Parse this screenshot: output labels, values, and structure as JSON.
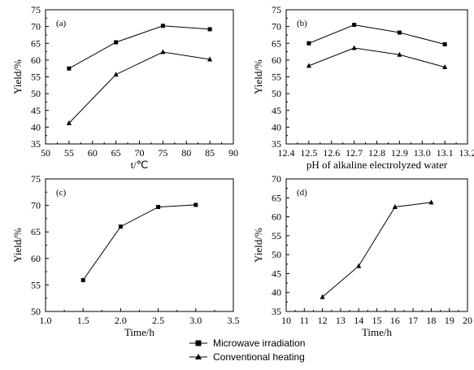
{
  "chart_data": [
    {
      "type": "line",
      "panel_label": "(a)",
      "xlabel": "t/℃",
      "ylabel": "Yield/%",
      "xlim": [
        50,
        90
      ],
      "ylim": [
        35,
        75
      ],
      "xticks": [
        50,
        55,
        60,
        65,
        70,
        75,
        80,
        85,
        90
      ],
      "xtick_labels": [
        "50",
        "55",
        "60",
        "65",
        "70",
        "75",
        "80",
        "85",
        "90"
      ],
      "yticks": [
        35,
        40,
        45,
        50,
        55,
        60,
        65,
        70,
        75
      ],
      "ytick_labels": [
        "35",
        "40",
        "45",
        "50",
        "55",
        "60",
        "65",
        "70",
        "75"
      ],
      "series": [
        {
          "name": "Microwave irradiation",
          "marker": "square",
          "x": [
            55,
            65,
            75,
            85
          ],
          "values": [
            57.5,
            65.3,
            70.2,
            69.2
          ]
        },
        {
          "name": "Conventional heating",
          "marker": "triangle",
          "x": [
            55,
            65,
            75,
            85
          ],
          "values": [
            41.2,
            55.7,
            62.4,
            60.2
          ]
        }
      ]
    },
    {
      "type": "line",
      "panel_label": "(b)",
      "xlabel": "pH of alkaline electrolyzed water",
      "ylabel": "Yield/%",
      "xlim": [
        12.4,
        13.2
      ],
      "ylim": [
        35,
        75
      ],
      "xticks": [
        12.4,
        12.5,
        12.6,
        12.7,
        12.8,
        12.9,
        13.0,
        13.1,
        13.2
      ],
      "xtick_labels": [
        "12.4",
        "12.5",
        "12.6",
        "12.7",
        "12.8",
        "12.9",
        "13.0",
        "13.1",
        "13.2"
      ],
      "yticks": [
        35,
        40,
        45,
        50,
        55,
        60,
        65,
        70,
        75
      ],
      "ytick_labels": [
        "35",
        "40",
        "45",
        "50",
        "55",
        "60",
        "65",
        "70",
        "75"
      ],
      "series": [
        {
          "name": "Microwave irradiation",
          "marker": "square",
          "x": [
            12.5,
            12.7,
            12.9,
            13.1
          ],
          "values": [
            65.0,
            70.5,
            68.2,
            64.7
          ]
        },
        {
          "name": "Conventional heating",
          "marker": "triangle",
          "x": [
            12.5,
            12.7,
            12.9,
            13.1
          ],
          "values": [
            58.3,
            63.6,
            61.6,
            57.9
          ]
        }
      ]
    },
    {
      "type": "line",
      "panel_label": "(c)",
      "xlabel": "Time/h",
      "ylabel": "Yield/%",
      "xlim": [
        1.0,
        3.5
      ],
      "ylim": [
        50,
        75
      ],
      "xticks": [
        1.0,
        1.5,
        2.0,
        2.5,
        3.0,
        3.5
      ],
      "xtick_labels": [
        "1.0",
        "1.5",
        "2.0",
        "2.5",
        "3.0",
        "3.5"
      ],
      "yticks": [
        50,
        55,
        60,
        65,
        70,
        75
      ],
      "ytick_labels": [
        "50",
        "55",
        "60",
        "65",
        "70",
        "75"
      ],
      "series": [
        {
          "name": "Microwave irradiation",
          "marker": "square",
          "x": [
            1.5,
            2.0,
            2.5,
            3.0
          ],
          "values": [
            55.9,
            66.0,
            69.7,
            70.1
          ]
        }
      ]
    },
    {
      "type": "line",
      "panel_label": "(d)",
      "xlabel": "Time/h",
      "ylabel": "Yield/%",
      "xlim": [
        10,
        20
      ],
      "ylim": [
        35,
        70
      ],
      "xticks": [
        10,
        11,
        12,
        13,
        14,
        15,
        16,
        17,
        18,
        19,
        20
      ],
      "xtick_labels": [
        "10",
        "11",
        "12",
        "13",
        "14",
        "15",
        "16",
        "17",
        "18",
        "19",
        "20"
      ],
      "yticks": [
        35,
        40,
        45,
        50,
        55,
        60,
        65,
        70
      ],
      "ytick_labels": [
        "35",
        "40",
        "45",
        "50",
        "55",
        "60",
        "65",
        "70"
      ],
      "series": [
        {
          "name": "Conventional heating",
          "marker": "triangle",
          "x": [
            12,
            14,
            16,
            18
          ],
          "values": [
            38.8,
            47.0,
            62.6,
            63.8
          ]
        }
      ]
    }
  ],
  "legend": {
    "items": [
      {
        "label": "Microwave irradiation",
        "marker": "square"
      },
      {
        "label": "Conventional heating",
        "marker": "triangle"
      }
    ]
  }
}
